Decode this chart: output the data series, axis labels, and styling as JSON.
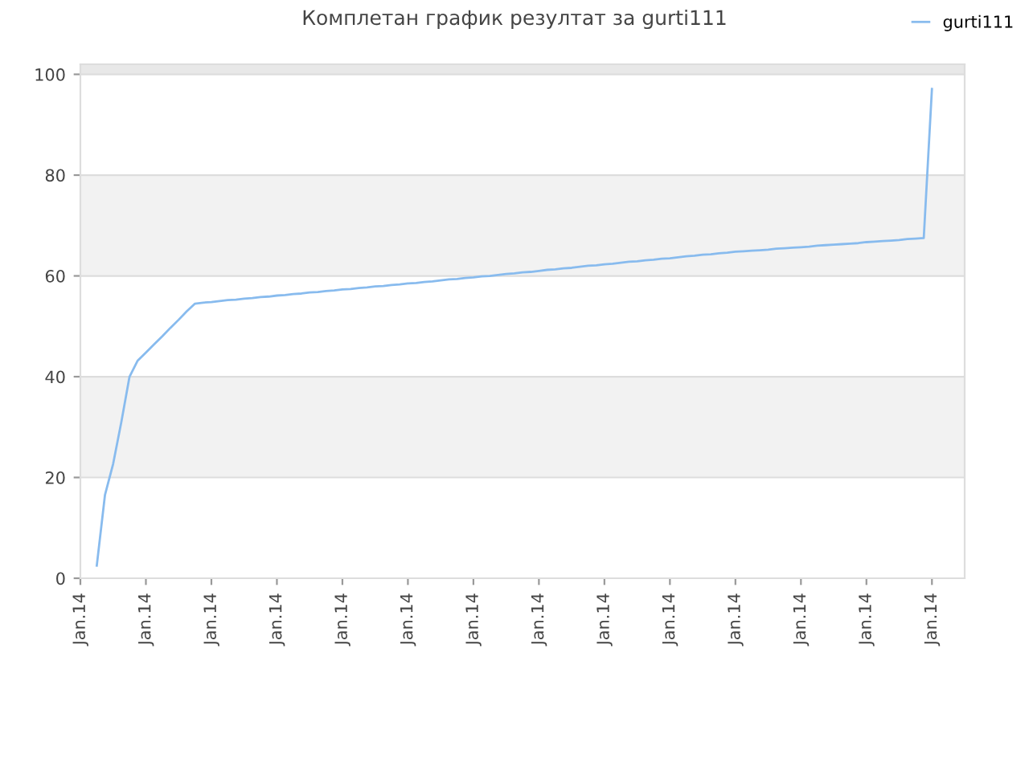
{
  "chart_data": {
    "type": "line",
    "title": "Комплетан график резултат за gurti111",
    "categories": [
      "Jan.14",
      null,
      null,
      null,
      null,
      null,
      null,
      null,
      "Jan.14",
      null,
      null,
      null,
      null,
      null,
      null,
      null,
      "Jan.14",
      null,
      null,
      null,
      null,
      null,
      null,
      null,
      "Jan.14",
      null,
      null,
      null,
      null,
      null,
      null,
      null,
      "Jan.14",
      null,
      null,
      null,
      null,
      null,
      null,
      null,
      "Jan.14",
      null,
      null,
      null,
      null,
      null,
      null,
      null,
      "Jan.14",
      null,
      null,
      null,
      null,
      null,
      null,
      null,
      "Jan.14",
      null,
      null,
      null,
      null,
      null,
      null,
      null,
      "Jan.14",
      null,
      null,
      null,
      null,
      null,
      null,
      null,
      "Jan.14",
      null,
      null,
      null,
      null,
      null,
      null,
      null,
      "Jan.14",
      null,
      null,
      null,
      null,
      null,
      null,
      null,
      "Jan.14",
      null,
      null,
      null,
      null,
      null,
      null,
      null,
      "Jan.14",
      null,
      null,
      null,
      null,
      null,
      null,
      null,
      "Jan.14",
      null,
      null,
      null,
      null
    ],
    "series": [
      {
        "name": "gurti111",
        "color": "#88bbee",
        "values": [
          null,
          null,
          2.5,
          16.5,
          22.7,
          31,
          40,
          43.2,
          44.8,
          46.4,
          48.0,
          49.7,
          51.3,
          53.0,
          54.5,
          54.7,
          54.8,
          55.0,
          55.2,
          55.3,
          55.5,
          55.6,
          55.8,
          55.9,
          56.1,
          56.2,
          56.4,
          56.5,
          56.7,
          56.8,
          57.0,
          57.1,
          57.3,
          57.4,
          57.6,
          57.7,
          57.9,
          58.0,
          58.2,
          58.3,
          58.5,
          58.6,
          58.8,
          58.9,
          59.1,
          59.3,
          59.4,
          59.6,
          59.7,
          59.9,
          60.0,
          60.2,
          60.4,
          60.5,
          60.7,
          60.8,
          61.0,
          61.2,
          61.3,
          61.5,
          61.6,
          61.8,
          62.0,
          62.1,
          62.3,
          62.4,
          62.6,
          62.8,
          62.9,
          63.1,
          63.2,
          63.4,
          63.5,
          63.7,
          63.9,
          64.0,
          64.2,
          64.3,
          64.5,
          64.6,
          64.8,
          64.9,
          65.0,
          65.1,
          65.2,
          65.4,
          65.5,
          65.6,
          65.7,
          65.8,
          66.0,
          66.1,
          66.2,
          66.3,
          66.4,
          66.5,
          66.7,
          66.8,
          66.9,
          67.0,
          67.1,
          67.3,
          67.4,
          67.5,
          97.1,
          null,
          null,
          null,
          null
        ]
      }
    ],
    "ylim": [
      0,
      102
    ],
    "yticks": [
      0,
      20,
      40,
      60,
      80,
      100
    ],
    "bands": [
      {
        "axis": "y",
        "from": 20,
        "to": 40,
        "color": "#f2f2f2"
      },
      {
        "axis": "y",
        "from": 60,
        "to": 80,
        "color": "#f2f2f2"
      },
      {
        "axis": "y",
        "from": 100,
        "to": 102,
        "color": "#e8e8e8"
      }
    ],
    "grid": "y",
    "legend": "top right",
    "marker": "none",
    "line_style": "solid"
  }
}
